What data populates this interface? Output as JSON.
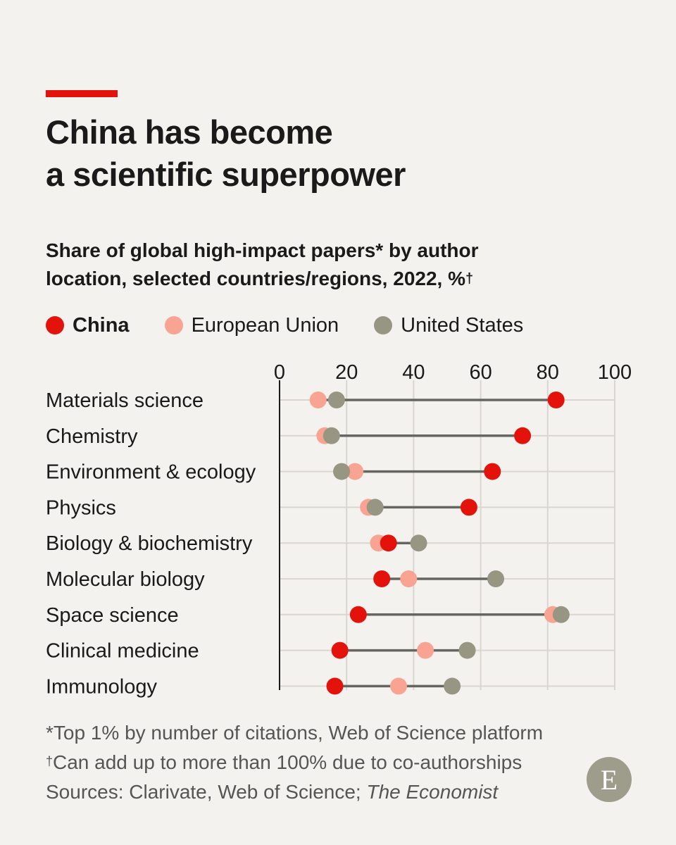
{
  "title_line1": "China has become",
  "title_line2": "a scientific superpower",
  "subtitle_line1": "Share of global high-impact papers* by author",
  "subtitle_line2": "location, selected countries/regions, 2022, %",
  "subtitle_mark": "†",
  "legend": [
    {
      "name": "China",
      "color": "#e3120b"
    },
    {
      "name": "European Union",
      "color": "#f9a392"
    },
    {
      "name": "United States",
      "color": "#979683"
    }
  ],
  "chart_data": {
    "type": "scatter",
    "subtype": "dot-plot",
    "xlim": [
      0,
      100
    ],
    "x_ticks": [
      0,
      20,
      40,
      60,
      80,
      100
    ],
    "grid": true,
    "categories": [
      "Materials science",
      "Chemistry",
      "Environment & ecology",
      "Physics",
      "Biology & biochemistry",
      "Molecular biology",
      "Space science",
      "Clinical medicine",
      "Immunology"
    ],
    "series": [
      {
        "name": "China",
        "color": "#e3120b",
        "values": [
          82.5,
          72.5,
          63.5,
          56.5,
          32.5,
          30.5,
          23.5,
          18,
          16.5
        ]
      },
      {
        "name": "European Union",
        "color": "#f9a392",
        "values": [
          11.5,
          13.5,
          22.5,
          26.5,
          29.5,
          38.5,
          81.5,
          43.5,
          35.5
        ]
      },
      {
        "name": "United States",
        "color": "#979683",
        "values": [
          17,
          15.5,
          18.5,
          28.5,
          41.5,
          64.5,
          84,
          56,
          51.5
        ]
      }
    ]
  },
  "footnotes": {
    "line1": "*Top 1% by number of citations, Web of Science platform",
    "line2_mark": "†",
    "line2": "Can add up to more than 100% due to co-authorships",
    "line3_prefix": "Sources: Clarivate, Web of Science; ",
    "line3_italic": "The Economist"
  },
  "logo_letter": "E"
}
